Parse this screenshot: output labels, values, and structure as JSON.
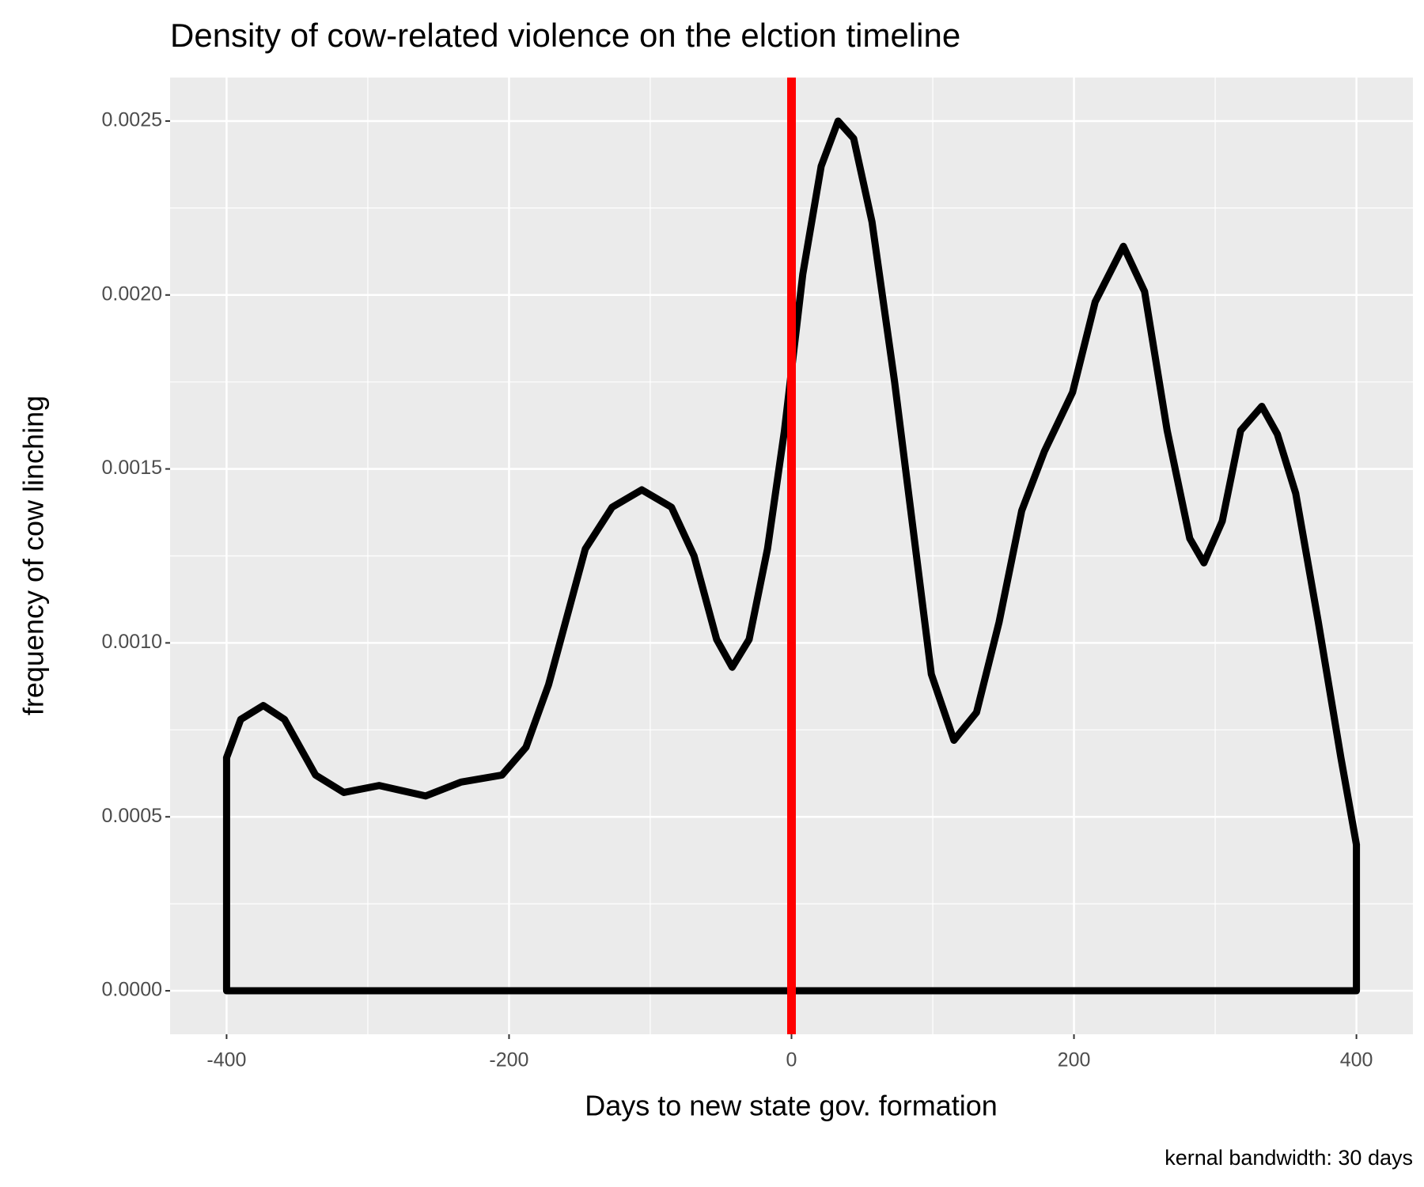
{
  "chart_data": {
    "type": "density",
    "title": "Density of cow-related violence on the elction timeline",
    "x_label": "Days to new state gov. formation",
    "y_label": "frequency of cow linching",
    "caption": "kernal bandwidth: 30 days",
    "x": [
      -400,
      -390,
      -374,
      -359,
      -337,
      -317,
      -292,
      -259,
      -234,
      -205,
      -188,
      -172,
      -146,
      -127,
      -106,
      -85,
      -69,
      -53,
      -42,
      -30,
      -17,
      -5,
      8,
      21,
      33,
      44,
      57,
      73,
      86,
      99,
      115,
      131,
      147,
      163,
      179,
      199,
      215,
      235,
      250,
      266,
      282,
      292,
      305,
      318,
      333,
      344,
      357,
      373,
      389,
      400
    ],
    "values": [
      0.00067,
      0.00078,
      0.00082,
      0.00078,
      0.00062,
      0.00057,
      0.00059,
      0.00056,
      0.0006,
      0.00062,
      0.0007,
      0.00088,
      0.00127,
      0.00139,
      0.00144,
      0.00139,
      0.00125,
      0.00101,
      0.00093,
      0.00101,
      0.00127,
      0.00161,
      0.00206,
      0.00237,
      0.0025,
      0.00245,
      0.00221,
      0.00175,
      0.00133,
      0.00091,
      0.00072,
      0.0008,
      0.00106,
      0.00138,
      0.00155,
      0.00172,
      0.00198,
      0.00214,
      0.00201,
      0.00161,
      0.0013,
      0.00123,
      0.00135,
      0.00161,
      0.00168,
      0.0016,
      0.00143,
      0.00106,
      0.00067,
      0.00042
    ],
    "color": "#000000",
    "xintercept": 0,
    "xintercept_color": "#ff0000",
    "xlim": [
      -440,
      440
    ],
    "xticks": [
      -400,
      -200,
      0,
      200,
      400
    ],
    "ylim": [
      -0.000125,
      0.002625
    ],
    "yticks": [
      {
        "value": 0,
        "label": "0.0000"
      },
      {
        "value": 0.0005,
        "label": "0.0005"
      },
      {
        "value": 0.001,
        "label": "0.0010"
      },
      {
        "value": 0.0015,
        "label": "0.0015"
      },
      {
        "value": 0.002,
        "label": "0.0020"
      },
      {
        "value": 0.0025,
        "label": "0.0025"
      }
    ],
    "grid": true
  }
}
